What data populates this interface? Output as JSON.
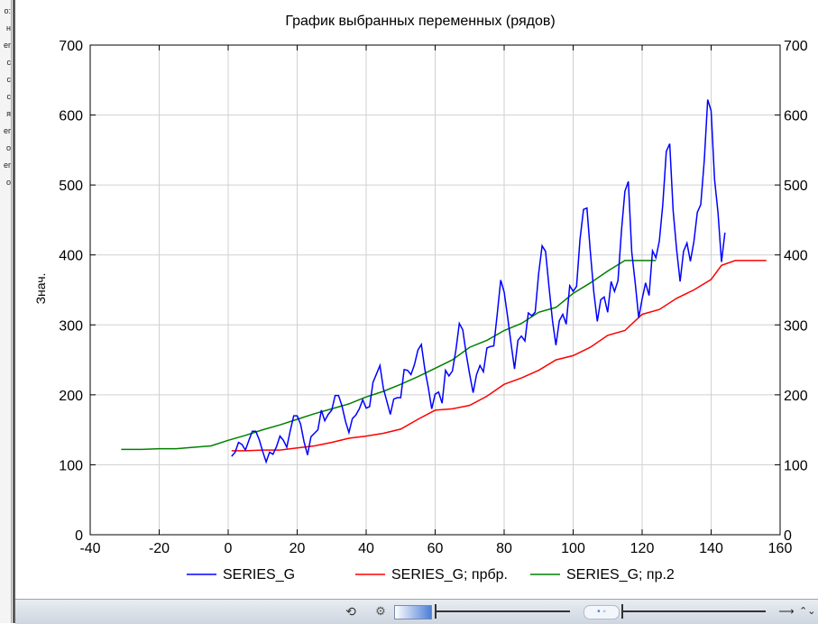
{
  "left_strip": {
    "fragments": [
      "о:",
      "н",
      "er",
      "c",
      "c",
      "c",
      "я",
      "er",
      "о",
      "er",
      "о"
    ]
  },
  "chart_data": {
    "type": "line",
    "title": "График выбранных переменных (рядов)",
    "xlabel": "",
    "ylabel": "Знач.",
    "xlim": [
      -40,
      160
    ],
    "ylim": [
      0,
      700
    ],
    "xticks": [
      -40,
      -20,
      0,
      20,
      40,
      60,
      80,
      100,
      120,
      140,
      160
    ],
    "yticks": [
      0,
      100,
      200,
      300,
      400,
      500,
      600,
      700
    ],
    "grid": true,
    "legend_position": "bottom",
    "series": [
      {
        "name": "SERIES_G",
        "color": "#0000ff",
        "x": [
          1,
          2,
          3,
          4,
          5,
          6,
          7,
          8,
          9,
          10,
          11,
          12,
          13,
          14,
          15,
          16,
          17,
          18,
          19,
          20,
          21,
          22,
          23,
          24,
          25,
          26,
          27,
          28,
          29,
          30,
          31,
          32,
          33,
          34,
          35,
          36,
          37,
          38,
          39,
          40,
          41,
          42,
          43,
          44,
          45,
          46,
          47,
          48,
          49,
          50,
          51,
          52,
          53,
          54,
          55,
          56,
          57,
          58,
          59,
          60,
          61,
          62,
          63,
          64,
          65,
          66,
          67,
          68,
          69,
          70,
          71,
          72,
          73,
          74,
          75,
          76,
          77,
          78,
          79,
          80,
          81,
          82,
          83,
          84,
          85,
          86,
          87,
          88,
          89,
          90,
          91,
          92,
          93,
          94,
          95,
          96,
          97,
          98,
          99,
          100,
          101,
          102,
          103,
          104,
          105,
          106,
          107,
          108,
          109,
          110,
          111,
          112,
          113,
          114,
          115,
          116,
          117,
          118,
          119,
          120,
          121,
          122,
          123,
          124,
          125,
          126,
          127,
          128,
          129,
          130,
          131,
          132,
          133,
          134,
          135,
          136,
          137,
          138,
          139,
          140,
          141,
          142,
          143,
          144
        ],
        "y": [
          112,
          118,
          132,
          129,
          121,
          135,
          148,
          148,
          136,
          119,
          104,
          118,
          115,
          126,
          141,
          135,
          125,
          149,
          170,
          170,
          158,
          133,
          114,
          140,
          145,
          150,
          178,
          163,
          172,
          178,
          199,
          199,
          184,
          162,
          146,
          166,
          171,
          180,
          193,
          181,
          183,
          218,
          230,
          242,
          209,
          191,
          172,
          194,
          196,
          196,
          236,
          235,
          229,
          243,
          264,
          272,
          237,
          211,
          180,
          201,
          204,
          188,
          235,
          227,
          234,
          264,
          302,
          293,
          259,
          229,
          203,
          229,
          242,
          233,
          267,
          269,
          270,
          315,
          364,
          347,
          312,
          274,
          237,
          278,
          284,
          277,
          317,
          313,
          318,
          374,
          413,
          405,
          355,
          306,
          271,
          306,
          315,
          301,
          356,
          348,
          355,
          422,
          465,
          467,
          404,
          347,
          305,
          336,
          340,
          318,
          362,
          348,
          363,
          435,
          491,
          505,
          404,
          359,
          310,
          337,
          360,
          342,
          406,
          396,
          420,
          472,
          548,
          559,
          463,
          407,
          362,
          405,
          417,
          391,
          419,
          461,
          472,
          535,
          622,
          606,
          508,
          461,
          390,
          432
        ]
      },
      {
        "name": "SERIES_G; прбр.",
        "color": "#ff0000",
        "x": [
          1,
          5,
          10,
          15,
          20,
          25,
          30,
          35,
          40,
          45,
          50,
          55,
          60,
          65,
          70,
          75,
          80,
          85,
          90,
          95,
          100,
          105,
          110,
          115,
          120,
          125,
          130,
          135,
          140,
          143,
          147,
          156
        ],
        "y": [
          120,
          120,
          121,
          121,
          124,
          127,
          132,
          138,
          141,
          145,
          151,
          165,
          178,
          180,
          185,
          198,
          215,
          224,
          235,
          250,
          256,
          268,
          285,
          292,
          315,
          322,
          338,
          350,
          365,
          385,
          392,
          392
        ]
      },
      {
        "name": "SERIES_G; пр.2",
        "color": "#008000",
        "x": [
          -31,
          -25,
          -20,
          -15,
          -10,
          -5,
          0,
          5,
          10,
          15,
          20,
          25,
          30,
          35,
          40,
          45,
          50,
          55,
          60,
          65,
          70,
          75,
          80,
          85,
          90,
          95,
          100,
          105,
          110,
          115,
          120,
          124
        ],
        "y": [
          122,
          122,
          123,
          123,
          125,
          127,
          135,
          142,
          150,
          157,
          165,
          173,
          180,
          187,
          197,
          205,
          215,
          226,
          238,
          250,
          268,
          278,
          292,
          302,
          318,
          325,
          345,
          360,
          377,
          392,
          392,
          392
        ]
      }
    ]
  },
  "toolbar": {
    "refresh_icon": "⟲",
    "gear_icon": "⚙",
    "dots_icon": "• ◦",
    "arrow_icon": "⟶",
    "updown_icon": "⌃⌄"
  }
}
